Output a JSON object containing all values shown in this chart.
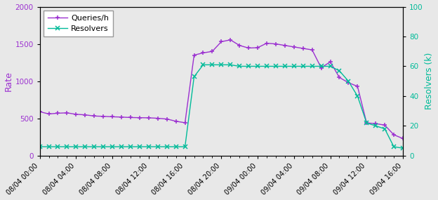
{
  "ylabel_left": "Rate",
  "ylabel_right": "Resolvers (k)",
  "left_color": "#9b30d0",
  "right_color": "#00bb99",
  "ylim_left": [
    0,
    2000
  ],
  "ylim_right": [
    0,
    100
  ],
  "yticks_left": [
    0,
    500,
    1000,
    1500,
    2000
  ],
  "yticks_right": [
    0,
    20,
    40,
    60,
    80,
    100
  ],
  "queries_x": [
    0,
    1,
    2,
    3,
    4,
    5,
    6,
    7,
    8,
    9,
    10,
    11,
    12,
    13,
    14,
    15,
    16,
    17,
    18,
    19,
    20,
    21,
    22,
    23,
    24,
    25,
    26,
    27,
    28,
    29,
    30,
    31,
    32,
    33,
    34,
    35,
    36,
    37,
    38,
    39,
    40
  ],
  "queries_values": [
    590,
    560,
    570,
    575,
    555,
    548,
    532,
    528,
    522,
    518,
    512,
    510,
    508,
    502,
    492,
    462,
    442,
    1350,
    1380,
    1400,
    1530,
    1555,
    1480,
    1445,
    1450,
    1510,
    1500,
    1480,
    1460,
    1440,
    1420,
    1180,
    1260,
    1050,
    980,
    930,
    440,
    430,
    410,
    280,
    230
  ],
  "resolvers_x": [
    0,
    1,
    2,
    3,
    4,
    5,
    6,
    7,
    8,
    9,
    10,
    11,
    12,
    13,
    14,
    15,
    16,
    17,
    18,
    19,
    20,
    21,
    22,
    23,
    24,
    25,
    26,
    27,
    28,
    29,
    30,
    31,
    32,
    33,
    34,
    35,
    36,
    37,
    38,
    39,
    40
  ],
  "resolvers_values_k": [
    6,
    6,
    6,
    6,
    6,
    6,
    6,
    6,
    6,
    6,
    6,
    6,
    6,
    6,
    6,
    6,
    6,
    53,
    61,
    61,
    61,
    61,
    60,
    60,
    60,
    60,
    60,
    60,
    60,
    60,
    60,
    60,
    60,
    57,
    50,
    40,
    22,
    20,
    18,
    6,
    5
  ],
  "xtick_positions": [
    0,
    4,
    8,
    12,
    16,
    20,
    24,
    28,
    32,
    36,
    40
  ],
  "xtick_labels": [
    "08/04 00:00",
    "08/04 04:00",
    "08/04 08:00",
    "08/04 12:00",
    "08/04 16:00",
    "08/04 20:00",
    "09/04 00:00",
    "09/04 04:00",
    "09/04 08:00",
    "09/04 12:00",
    "09/04 16:00"
  ],
  "background_color": "#e8e8e8",
  "legend_labels": [
    "Queries/h",
    "Resolvers"
  ]
}
